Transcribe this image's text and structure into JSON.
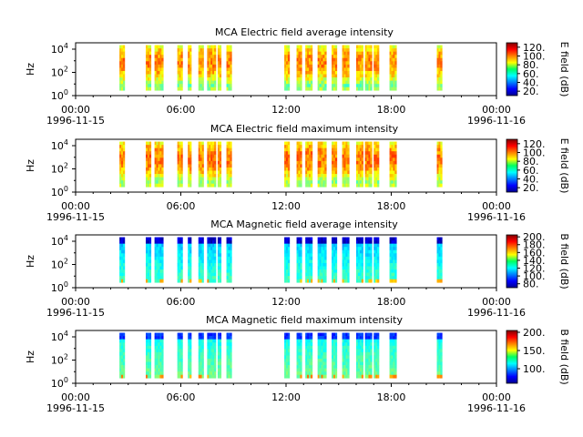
{
  "chart_data": [
    {
      "type": "heatmap",
      "title": "MCA  Electric field average intensity",
      "ylabel": "Hz",
      "y_scale": "log",
      "y_ticks": [
        {
          "exp": "0"
        },
        {
          "exp": "2"
        },
        {
          "exp": "4"
        }
      ],
      "x_ticks": [
        {
          "time": "00:00",
          "date": "1996-11-15"
        },
        {
          "time": "06:00",
          "date": ""
        },
        {
          "time": "12:00",
          "date": ""
        },
        {
          "time": "18:00",
          "date": ""
        },
        {
          "time": "00:00",
          "date": "1996-11-16"
        }
      ],
      "colorbar": {
        "label": "E field (dB)",
        "ticks": [
          "20.",
          "40.",
          "60.",
          "80.",
          "100.",
          "120."
        ],
        "range": [
          10,
          130
        ]
      },
      "intervals_hours": [
        [
          2.5,
          2.8
        ],
        [
          4.0,
          4.3
        ],
        [
          4.5,
          5.0
        ],
        [
          5.8,
          6.1
        ],
        [
          6.4,
          6.6
        ],
        [
          7.0,
          7.3
        ],
        [
          7.5,
          8.0
        ],
        [
          8.1,
          8.3
        ],
        [
          8.6,
          8.9
        ],
        [
          11.9,
          12.2
        ],
        [
          12.6,
          12.9
        ],
        [
          13.1,
          13.5
        ],
        [
          13.8,
          14.3
        ],
        [
          14.6,
          14.9
        ],
        [
          15.2,
          15.6
        ],
        [
          16.0,
          16.4
        ],
        [
          16.5,
          16.9
        ],
        [
          17.0,
          17.3
        ],
        [
          17.9,
          18.3
        ],
        [
          20.6,
          20.9
        ]
      ],
      "color_level_range": [
        35,
        110
      ]
    },
    {
      "type": "heatmap",
      "title": "MCA  Electric field maximum intensity",
      "ylabel": "Hz",
      "y_scale": "log",
      "y_ticks": [
        {
          "exp": "0"
        },
        {
          "exp": "2"
        },
        {
          "exp": "4"
        }
      ],
      "x_ticks": [
        {
          "time": "00:00",
          "date": "1996-11-15"
        },
        {
          "time": "06:00",
          "date": ""
        },
        {
          "time": "12:00",
          "date": ""
        },
        {
          "time": "18:00",
          "date": ""
        },
        {
          "time": "00:00",
          "date": "1996-11-16"
        }
      ],
      "colorbar": {
        "label": "E field (dB)",
        "ticks": [
          "20.",
          "40.",
          "60.",
          "80.",
          "100.",
          "120."
        ],
        "range": [
          10,
          130
        ]
      },
      "intervals_hours": [
        [
          2.5,
          2.8
        ],
        [
          4.0,
          4.3
        ],
        [
          4.5,
          5.0
        ],
        [
          5.8,
          6.1
        ],
        [
          6.4,
          6.6
        ],
        [
          7.0,
          7.3
        ],
        [
          7.5,
          8.0
        ],
        [
          8.1,
          8.3
        ],
        [
          8.6,
          8.9
        ],
        [
          11.9,
          12.2
        ],
        [
          12.6,
          12.9
        ],
        [
          13.1,
          13.5
        ],
        [
          13.8,
          14.3
        ],
        [
          14.6,
          14.9
        ],
        [
          15.2,
          15.6
        ],
        [
          16.0,
          16.4
        ],
        [
          16.5,
          16.9
        ],
        [
          17.0,
          17.3
        ],
        [
          17.9,
          18.3
        ],
        [
          20.6,
          20.9
        ]
      ],
      "color_level_range": [
        40,
        112
      ]
    },
    {
      "type": "heatmap",
      "title": "MCA  Magnetic field average intensity",
      "ylabel": "Hz",
      "y_scale": "log",
      "y_ticks": [
        {
          "exp": "0"
        },
        {
          "exp": "2"
        },
        {
          "exp": "4"
        }
      ],
      "x_ticks": [
        {
          "time": "00:00",
          "date": "1996-11-15"
        },
        {
          "time": "06:00",
          "date": ""
        },
        {
          "time": "12:00",
          "date": ""
        },
        {
          "time": "18:00",
          "date": ""
        },
        {
          "time": "00:00",
          "date": "1996-11-16"
        }
      ],
      "colorbar": {
        "label": "B field (dB)",
        "ticks": [
          "80.",
          "100.",
          "120.",
          "140.",
          "160.",
          "180.",
          "200."
        ],
        "range": [
          70,
          205
        ]
      },
      "intervals_hours": [
        [
          2.5,
          2.8
        ],
        [
          4.0,
          4.3
        ],
        [
          4.5,
          5.0
        ],
        [
          5.8,
          6.1
        ],
        [
          6.4,
          6.6
        ],
        [
          7.0,
          7.3
        ],
        [
          7.5,
          8.0
        ],
        [
          8.1,
          8.3
        ],
        [
          8.6,
          8.9
        ],
        [
          11.9,
          12.2
        ],
        [
          12.6,
          12.9
        ],
        [
          13.1,
          13.5
        ],
        [
          13.8,
          14.3
        ],
        [
          14.6,
          14.9
        ],
        [
          15.2,
          15.6
        ],
        [
          16.0,
          16.4
        ],
        [
          16.5,
          16.9
        ],
        [
          17.0,
          17.3
        ],
        [
          17.9,
          18.3
        ],
        [
          20.6,
          20.9
        ]
      ],
      "color_level_range": [
        80,
        150
      ]
    },
    {
      "type": "heatmap",
      "title": "MCA  Magnetic field maximum intensity",
      "ylabel": "Hz",
      "y_scale": "log",
      "y_ticks": [
        {
          "exp": "0"
        },
        {
          "exp": "2"
        },
        {
          "exp": "4"
        }
      ],
      "x_ticks": [
        {
          "time": "00:00",
          "date": "1996-11-15"
        },
        {
          "time": "06:00",
          "date": ""
        },
        {
          "time": "12:00",
          "date": ""
        },
        {
          "time": "18:00",
          "date": ""
        },
        {
          "time": "00:00",
          "date": "1996-11-16"
        }
      ],
      "colorbar": {
        "label": "B field (dB)",
        "ticks": [
          "100.",
          "150.",
          "200."
        ],
        "range": [
          60,
          205
        ]
      },
      "intervals_hours": [
        [
          2.5,
          2.8
        ],
        [
          4.0,
          4.3
        ],
        [
          4.5,
          5.0
        ],
        [
          5.8,
          6.1
        ],
        [
          6.4,
          6.6
        ],
        [
          7.0,
          7.3
        ],
        [
          7.5,
          8.0
        ],
        [
          8.1,
          8.3
        ],
        [
          8.6,
          8.9
        ],
        [
          11.9,
          12.2
        ],
        [
          12.6,
          12.9
        ],
        [
          13.1,
          13.5
        ],
        [
          13.8,
          14.3
        ],
        [
          14.6,
          14.9
        ],
        [
          15.2,
          15.6
        ],
        [
          16.0,
          16.4
        ],
        [
          16.5,
          16.9
        ],
        [
          17.0,
          17.3
        ],
        [
          17.9,
          18.3
        ],
        [
          20.6,
          20.9
        ]
      ],
      "color_level_range": [
        85,
        150
      ]
    }
  ]
}
